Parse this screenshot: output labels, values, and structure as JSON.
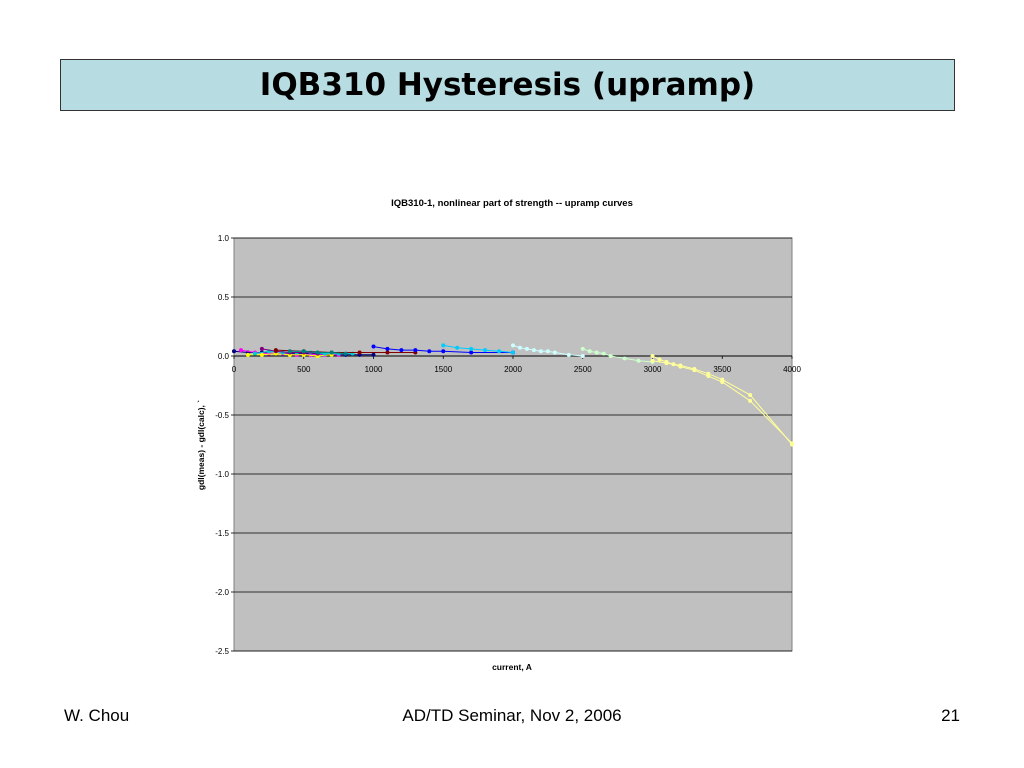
{
  "slide": {
    "title": "IQB310 Hysteresis (upramp)",
    "footer_left": "W. Chou",
    "footer_center": "AD/TD Seminar, Nov 2, 2006",
    "footer_right": "21"
  },
  "chart_data": {
    "type": "line",
    "title": "IQB310-1, nonlinear part of strength -- upramp curves",
    "xlabel": "current, A",
    "ylabel": "gdl(meas) - gdl(calc),  `",
    "xlim": [
      0,
      4000
    ],
    "ylim": [
      -2.5,
      1.0
    ],
    "x_ticks": [
      0,
      500,
      1000,
      1500,
      2000,
      2500,
      3000,
      3500,
      4000
    ],
    "y_ticks": [
      1.0,
      0.5,
      0.0,
      -0.5,
      -1.0,
      -1.5,
      -2.0,
      -2.5
    ],
    "grid": true,
    "plot_background": "#c0c0c0",
    "series": [
      {
        "color": "#000080",
        "x": [
          0,
          100,
          200,
          300,
          400,
          500,
          600,
          700,
          800,
          900,
          1000
        ],
        "y": [
          0.04,
          0.03,
          0.03,
          0.02,
          0.02,
          0.02,
          0.02,
          0.01,
          0.01,
          0.01,
          0.01
        ]
      },
      {
        "color": "#ff00ff",
        "x": [
          50,
          150,
          250,
          350,
          450,
          550,
          650,
          750
        ],
        "y": [
          0.05,
          0.03,
          0.02,
          0.02,
          0.01,
          0.01,
          0.01,
          0.01
        ]
      },
      {
        "color": "#ffff00",
        "x": [
          100,
          200,
          300,
          400,
          500,
          600,
          700
        ],
        "y": [
          0.01,
          0.01,
          0.02,
          0.01,
          0.01,
          0.0,
          0.01
        ]
      },
      {
        "color": "#00cccc",
        "x": [
          150,
          250,
          350,
          450,
          550,
          650,
          750,
          850
        ],
        "y": [
          0.02,
          0.04,
          0.03,
          0.03,
          0.03,
          0.02,
          0.02,
          0.02
        ]
      },
      {
        "color": "#800080",
        "x": [
          200,
          300,
          400,
          500,
          600
        ],
        "y": [
          0.06,
          0.04,
          0.03,
          0.03,
          0.02
        ]
      },
      {
        "color": "#800000",
        "x": [
          300,
          500,
          700,
          900,
          1100,
          1300
        ],
        "y": [
          0.05,
          0.04,
          0.03,
          0.03,
          0.03,
          0.03
        ]
      },
      {
        "color": "#008080",
        "x": [
          400,
          500,
          600,
          700,
          800
        ],
        "y": [
          0.04,
          0.04,
          0.03,
          0.03,
          0.02
        ]
      },
      {
        "color": "#0000ff",
        "x": [
          1000,
          1100,
          1200,
          1300,
          1400,
          1500,
          1700,
          2000
        ],
        "y": [
          0.08,
          0.06,
          0.05,
          0.05,
          0.04,
          0.04,
          0.03,
          0.03
        ]
      },
      {
        "color": "#00ccff",
        "x": [
          1500,
          1600,
          1700,
          1800,
          1900,
          2000
        ],
        "y": [
          0.09,
          0.07,
          0.06,
          0.05,
          0.04,
          0.03
        ]
      },
      {
        "color": "#ccffff",
        "x": [
          2000,
          2050,
          2100,
          2150,
          2200,
          2250,
          2300,
          2400,
          2500
        ],
        "y": [
          0.09,
          0.07,
          0.06,
          0.05,
          0.04,
          0.04,
          0.03,
          0.01,
          0.0
        ]
      },
      {
        "color": "#ccffcc",
        "x": [
          2500,
          2550,
          2600,
          2650,
          2700,
          2800,
          2900,
          3000
        ],
        "y": [
          0.06,
          0.04,
          0.03,
          0.02,
          0.0,
          -0.02,
          -0.04,
          -0.05
        ]
      },
      {
        "color": "#ffff99",
        "x": [
          3000,
          3050,
          3100,
          3150,
          3200,
          3300,
          3400,
          3500,
          3700,
          4000
        ],
        "y": [
          0.0,
          -0.03,
          -0.05,
          -0.07,
          -0.09,
          -0.12,
          -0.17,
          -0.22,
          -0.38,
          -0.74
        ]
      },
      {
        "color": "#ffff99",
        "x": [
          3000,
          3100,
          3200,
          3300,
          3400,
          3500,
          3700,
          4000
        ],
        "y": [
          -0.04,
          -0.06,
          -0.08,
          -0.11,
          -0.15,
          -0.2,
          -0.33,
          -0.75
        ]
      }
    ]
  }
}
